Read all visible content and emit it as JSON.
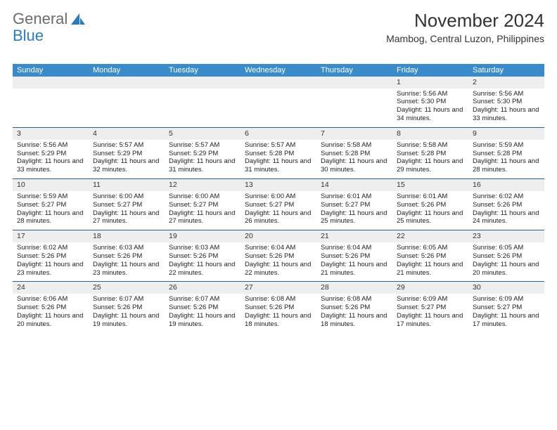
{
  "logo": {
    "word1": "General",
    "word2": "Blue"
  },
  "title": "November 2024",
  "location": "Mambog, Central Luzon, Philippines",
  "colors": {
    "header_bg": "#3a8bc9",
    "border": "#2e5f8a",
    "daynum_bg": "#eeeeee",
    "logo_gray": "#6b6b6b",
    "logo_blue": "#2b7bbf"
  },
  "day_headers": [
    "Sunday",
    "Monday",
    "Tuesday",
    "Wednesday",
    "Thursday",
    "Friday",
    "Saturday"
  ],
  "weeks": [
    [
      {
        "n": "",
        "sr": "",
        "ss": "",
        "dl": ""
      },
      {
        "n": "",
        "sr": "",
        "ss": "",
        "dl": ""
      },
      {
        "n": "",
        "sr": "",
        "ss": "",
        "dl": ""
      },
      {
        "n": "",
        "sr": "",
        "ss": "",
        "dl": ""
      },
      {
        "n": "",
        "sr": "",
        "ss": "",
        "dl": ""
      },
      {
        "n": "1",
        "sr": "Sunrise: 5:56 AM",
        "ss": "Sunset: 5:30 PM",
        "dl": "Daylight: 11 hours and 34 minutes."
      },
      {
        "n": "2",
        "sr": "Sunrise: 5:56 AM",
        "ss": "Sunset: 5:30 PM",
        "dl": "Daylight: 11 hours and 33 minutes."
      }
    ],
    [
      {
        "n": "3",
        "sr": "Sunrise: 5:56 AM",
        "ss": "Sunset: 5:29 PM",
        "dl": "Daylight: 11 hours and 33 minutes."
      },
      {
        "n": "4",
        "sr": "Sunrise: 5:57 AM",
        "ss": "Sunset: 5:29 PM",
        "dl": "Daylight: 11 hours and 32 minutes."
      },
      {
        "n": "5",
        "sr": "Sunrise: 5:57 AM",
        "ss": "Sunset: 5:29 PM",
        "dl": "Daylight: 11 hours and 31 minutes."
      },
      {
        "n": "6",
        "sr": "Sunrise: 5:57 AM",
        "ss": "Sunset: 5:28 PM",
        "dl": "Daylight: 11 hours and 31 minutes."
      },
      {
        "n": "7",
        "sr": "Sunrise: 5:58 AM",
        "ss": "Sunset: 5:28 PM",
        "dl": "Daylight: 11 hours and 30 minutes."
      },
      {
        "n": "8",
        "sr": "Sunrise: 5:58 AM",
        "ss": "Sunset: 5:28 PM",
        "dl": "Daylight: 11 hours and 29 minutes."
      },
      {
        "n": "9",
        "sr": "Sunrise: 5:59 AM",
        "ss": "Sunset: 5:28 PM",
        "dl": "Daylight: 11 hours and 28 minutes."
      }
    ],
    [
      {
        "n": "10",
        "sr": "Sunrise: 5:59 AM",
        "ss": "Sunset: 5:27 PM",
        "dl": "Daylight: 11 hours and 28 minutes."
      },
      {
        "n": "11",
        "sr": "Sunrise: 6:00 AM",
        "ss": "Sunset: 5:27 PM",
        "dl": "Daylight: 11 hours and 27 minutes."
      },
      {
        "n": "12",
        "sr": "Sunrise: 6:00 AM",
        "ss": "Sunset: 5:27 PM",
        "dl": "Daylight: 11 hours and 27 minutes."
      },
      {
        "n": "13",
        "sr": "Sunrise: 6:00 AM",
        "ss": "Sunset: 5:27 PM",
        "dl": "Daylight: 11 hours and 26 minutes."
      },
      {
        "n": "14",
        "sr": "Sunrise: 6:01 AM",
        "ss": "Sunset: 5:27 PM",
        "dl": "Daylight: 11 hours and 25 minutes."
      },
      {
        "n": "15",
        "sr": "Sunrise: 6:01 AM",
        "ss": "Sunset: 5:26 PM",
        "dl": "Daylight: 11 hours and 25 minutes."
      },
      {
        "n": "16",
        "sr": "Sunrise: 6:02 AM",
        "ss": "Sunset: 5:26 PM",
        "dl": "Daylight: 11 hours and 24 minutes."
      }
    ],
    [
      {
        "n": "17",
        "sr": "Sunrise: 6:02 AM",
        "ss": "Sunset: 5:26 PM",
        "dl": "Daylight: 11 hours and 23 minutes."
      },
      {
        "n": "18",
        "sr": "Sunrise: 6:03 AM",
        "ss": "Sunset: 5:26 PM",
        "dl": "Daylight: 11 hours and 23 minutes."
      },
      {
        "n": "19",
        "sr": "Sunrise: 6:03 AM",
        "ss": "Sunset: 5:26 PM",
        "dl": "Daylight: 11 hours and 22 minutes."
      },
      {
        "n": "20",
        "sr": "Sunrise: 6:04 AM",
        "ss": "Sunset: 5:26 PM",
        "dl": "Daylight: 11 hours and 22 minutes."
      },
      {
        "n": "21",
        "sr": "Sunrise: 6:04 AM",
        "ss": "Sunset: 5:26 PM",
        "dl": "Daylight: 11 hours and 21 minutes."
      },
      {
        "n": "22",
        "sr": "Sunrise: 6:05 AM",
        "ss": "Sunset: 5:26 PM",
        "dl": "Daylight: 11 hours and 21 minutes."
      },
      {
        "n": "23",
        "sr": "Sunrise: 6:05 AM",
        "ss": "Sunset: 5:26 PM",
        "dl": "Daylight: 11 hours and 20 minutes."
      }
    ],
    [
      {
        "n": "24",
        "sr": "Sunrise: 6:06 AM",
        "ss": "Sunset: 5:26 PM",
        "dl": "Daylight: 11 hours and 20 minutes."
      },
      {
        "n": "25",
        "sr": "Sunrise: 6:07 AM",
        "ss": "Sunset: 5:26 PM",
        "dl": "Daylight: 11 hours and 19 minutes."
      },
      {
        "n": "26",
        "sr": "Sunrise: 6:07 AM",
        "ss": "Sunset: 5:26 PM",
        "dl": "Daylight: 11 hours and 19 minutes."
      },
      {
        "n": "27",
        "sr": "Sunrise: 6:08 AM",
        "ss": "Sunset: 5:26 PM",
        "dl": "Daylight: 11 hours and 18 minutes."
      },
      {
        "n": "28",
        "sr": "Sunrise: 6:08 AM",
        "ss": "Sunset: 5:26 PM",
        "dl": "Daylight: 11 hours and 18 minutes."
      },
      {
        "n": "29",
        "sr": "Sunrise: 6:09 AM",
        "ss": "Sunset: 5:27 PM",
        "dl": "Daylight: 11 hours and 17 minutes."
      },
      {
        "n": "30",
        "sr": "Sunrise: 6:09 AM",
        "ss": "Sunset: 5:27 PM",
        "dl": "Daylight: 11 hours and 17 minutes."
      }
    ]
  ]
}
